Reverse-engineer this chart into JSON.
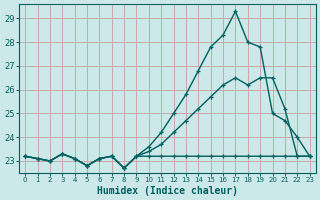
{
  "xlabel": "Humidex (Indice chaleur)",
  "bg_color": "#cce8e8",
  "grid_color": "#c8a8a8",
  "line_color": "#006060",
  "xlim": [
    -0.5,
    23.5
  ],
  "ylim": [
    22.5,
    29.6
  ],
  "yticks": [
    23,
    24,
    25,
    26,
    27,
    28,
    29
  ],
  "xticks": [
    0,
    1,
    2,
    3,
    4,
    5,
    6,
    7,
    8,
    9,
    10,
    11,
    12,
    13,
    14,
    15,
    16,
    17,
    18,
    19,
    20,
    21,
    22,
    23
  ],
  "line1_x": [
    0,
    1,
    2,
    3,
    4,
    5,
    6,
    7,
    8,
    9,
    10,
    11,
    12,
    13,
    14,
    15,
    16,
    17,
    18,
    19,
    20,
    21,
    22,
    23
  ],
  "line1_y": [
    23.2,
    23.1,
    23.0,
    23.3,
    23.1,
    22.8,
    23.1,
    23.2,
    22.7,
    23.2,
    23.2,
    23.2,
    23.2,
    23.2,
    23.2,
    23.2,
    23.2,
    23.2,
    23.2,
    23.2,
    23.2,
    23.2,
    23.2,
    23.2
  ],
  "line2_x": [
    0,
    1,
    2,
    3,
    4,
    5,
    6,
    7,
    8,
    9,
    10,
    11,
    12,
    13,
    14,
    15,
    16,
    17,
    18,
    19,
    20,
    21,
    22,
    23
  ],
  "line2_y": [
    23.2,
    23.1,
    23.0,
    23.3,
    23.1,
    22.8,
    23.1,
    23.2,
    22.7,
    23.2,
    23.4,
    23.7,
    24.2,
    24.7,
    25.2,
    25.7,
    26.2,
    26.5,
    26.2,
    26.5,
    26.5,
    25.2,
    23.2,
    23.2
  ],
  "line3_x": [
    0,
    1,
    2,
    3,
    4,
    5,
    6,
    7,
    8,
    9,
    10,
    11,
    12,
    13,
    14,
    15,
    16,
    17,
    18,
    19,
    20,
    21,
    22,
    23
  ],
  "line3_y": [
    23.2,
    23.1,
    23.0,
    23.3,
    23.1,
    22.8,
    23.1,
    23.2,
    22.7,
    23.2,
    23.6,
    24.2,
    25.0,
    25.8,
    26.8,
    27.8,
    28.3,
    29.3,
    28.0,
    27.8,
    25.0,
    24.7,
    24.0,
    23.2
  ]
}
